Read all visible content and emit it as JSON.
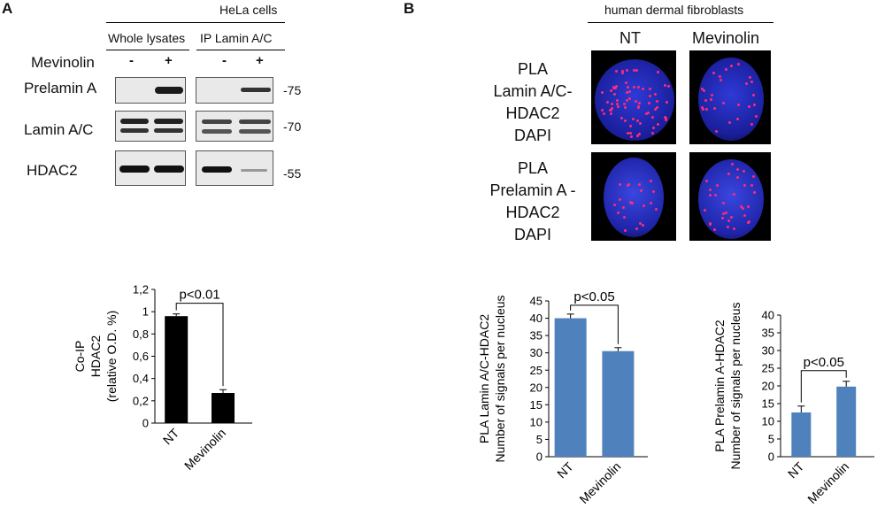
{
  "panel_a": {
    "letter": "A",
    "cell_line": "HeLa cells",
    "group_whole": "Whole lysates",
    "group_ip": "IP Lamin A/C",
    "treatment_label": "Mevinolin",
    "lane_signs": [
      "-",
      "+",
      "-",
      "+"
    ],
    "rows": [
      {
        "label": "Prelamin A",
        "mw": "-75"
      },
      {
        "label": "Lamin A/C",
        "mw": "-70"
      },
      {
        "label": "HDAC2",
        "mw": "-55"
      }
    ]
  },
  "panel_b": {
    "letter": "B",
    "cell_type": "human dermal fibroblasts",
    "col_nt": "NT",
    "col_mev": "Mevinolin",
    "row1": [
      "PLA",
      "Lamin A/C-HDAC2",
      "DAPI"
    ],
    "row2": [
      "PLA",
      "Prelamin A -HDAC2",
      "DAPI"
    ]
  },
  "chart_data": [
    {
      "type": "bar",
      "categories": [
        "NT",
        "Mevinolin"
      ],
      "values": [
        0.96,
        0.27
      ],
      "errors": [
        0.02,
        0.03
      ],
      "ylabel_lines": [
        "Co-IP",
        "HDAC2",
        "(relative O.D. %)"
      ],
      "yticks": [
        "0",
        "0,2",
        "0,4",
        "0,6",
        "0,8",
        "1",
        "1,2"
      ],
      "ylim": [
        0,
        1.2
      ],
      "annotation": "p<0.01",
      "color": "#000000"
    },
    {
      "type": "bar",
      "categories": [
        "NT",
        "Mevinolin"
      ],
      "values": [
        40,
        30.5
      ],
      "errors": [
        1.2,
        1.0
      ],
      "ylabel_lines": [
        "PLA Lamin A/C-HDAC2",
        "Number of signals per nucleus"
      ],
      "yticks": [
        "0",
        "5",
        "10",
        "15",
        "20",
        "25",
        "30",
        "35",
        "40",
        "45"
      ],
      "ylim": [
        0,
        45
      ],
      "annotation": "p<0.05",
      "color": "#4f81bd"
    },
    {
      "type": "bar",
      "categories": [
        "NT",
        "Mevinolin"
      ],
      "values": [
        12.5,
        19.8
      ],
      "errors": [
        1.8,
        1.5
      ],
      "ylabel_lines": [
        "PLA Prelamin A-HDAC2",
        "Number of signals per nucleus"
      ],
      "yticks": [
        "0",
        "5",
        "10",
        "15",
        "20",
        "25",
        "30",
        "35",
        "40"
      ],
      "ylim": [
        0,
        40
      ],
      "annotation": "p<0.05",
      "color": "#4f81bd"
    }
  ]
}
